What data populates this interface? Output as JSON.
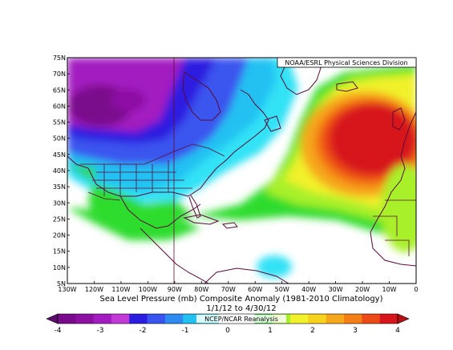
{
  "figure": {
    "credit": "NOAA/ESRL Physical Sciences Division",
    "caption_line1": "Sea Level Pressure (mb) Composite Anomaly (1981-2010 Climatology)",
    "caption_line2": "1/1/12  to 4/30/12",
    "watermark": "NCEP/NCAR Reanalysis"
  },
  "axes": {
    "lat_labels": [
      "75N",
      "70N",
      "65N",
      "60N",
      "55N",
      "50N",
      "45N",
      "40N",
      "35N",
      "30N",
      "25N",
      "20N",
      "15N",
      "10N",
      "5N"
    ],
    "lon_labels": [
      "130W",
      "120W",
      "110W",
      "100W",
      "90W",
      "80W",
      "70W",
      "60W",
      "50W",
      "40W",
      "30W",
      "20W",
      "10W",
      "0"
    ]
  },
  "colorbar": {
    "labels": [
      "-4",
      "-3",
      "-2",
      "-1",
      "0",
      "1",
      "2",
      "3",
      "4"
    ],
    "colors": [
      "#7a0a8c",
      "#8d10a5",
      "#a31cc0",
      "#c43ad6",
      "#2d1de0",
      "#3a55ef",
      "#2f8bf2",
      "#22c1f2",
      "#33e2f5",
      "#ffffff",
      "#ffffff",
      "#2ddc2d",
      "#a8f02c",
      "#f1f12c",
      "#f7d21e",
      "#f5a81b",
      "#f47e18",
      "#ec4a16",
      "#d7151c"
    ]
  },
  "chart_data": {
    "type": "heatmap",
    "title": "Sea Level Pressure (mb) Composite Anomaly (1981-2010 Climatology)",
    "period": "1/1/12  to 4/30/12",
    "lon_range": [
      "130W",
      "0"
    ],
    "lat_range": [
      "5N",
      "75N"
    ],
    "colorbar_range": [
      -4,
      4
    ],
    "colorbar_ticks": [
      -4,
      -3,
      -2,
      -1,
      0,
      1,
      2,
      3,
      4
    ],
    "features": [
      {
        "region": "Central North Atlantic (~20W-40W, 45N-60N)",
        "anomaly_mb": 4
      },
      {
        "region": "Northwestern Canada (~110W-125W, 60N-65N)",
        "anomaly_mb": -4
      },
      {
        "region": "Southern Canada / Great Lakes",
        "anomaly_mb": -2
      },
      {
        "region": "Subtropical Atlantic (~20N-35N)",
        "anomaly_mb": 1
      },
      {
        "region": "Eastern Pacific (~5N-10N, 55W)",
        "anomaly_mb": -1
      }
    ]
  }
}
